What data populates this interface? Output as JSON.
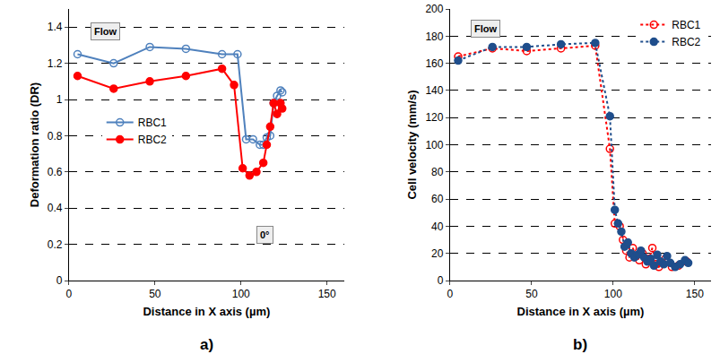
{
  "chart_data": [
    {
      "type": "line",
      "panel_label": "a)",
      "x_label": "Distance in X axis (µm)",
      "y_label": "Deformation ratio (DR)",
      "xlim": [
        0,
        160
      ],
      "xticks": [
        0,
        50,
        100,
        150
      ],
      "ylim": [
        0,
        1.5
      ],
      "yticks": [
        0,
        0.2,
        0.4,
        0.6,
        0.8,
        1,
        1.2,
        1.4
      ],
      "grid": true,
      "legend": "middle left",
      "annotations": [
        "Flow",
        "0°"
      ],
      "series": [
        {
          "name": "RBC1",
          "color": "#4f81bd",
          "marker": "circle-open",
          "line_style": "solid",
          "x": [
            5,
            26,
            47,
            68,
            89,
            98,
            103,
            107,
            111,
            113,
            115,
            117,
            119,
            121,
            123,
            124
          ],
          "values": [
            1.25,
            1.2,
            1.29,
            1.28,
            1.25,
            1.25,
            0.78,
            0.78,
            0.75,
            0.75,
            0.79,
            0.8,
            0.98,
            1.02,
            1.05,
            1.04
          ]
        },
        {
          "name": "RBC2",
          "color": "#ff0000",
          "marker": "circle",
          "line_style": "solid",
          "x": [
            5,
            26,
            47,
            68,
            89,
            96,
            101,
            105,
            109,
            113,
            115,
            117,
            119,
            121,
            123,
            124
          ],
          "values": [
            1.13,
            1.06,
            1.1,
            1.13,
            1.17,
            1.08,
            0.62,
            0.58,
            0.6,
            0.65,
            0.75,
            0.85,
            0.98,
            0.92,
            0.98,
            0.95
          ]
        }
      ]
    },
    {
      "type": "line",
      "panel_label": "b)",
      "x_label": "Distance in X axis (µm)",
      "y_label": "Cell velocity (mm/s)",
      "xlim": [
        0,
        160
      ],
      "xticks": [
        0,
        50,
        100,
        150
      ],
      "ylim": [
        0,
        200
      ],
      "yticks": [
        0,
        20,
        40,
        60,
        80,
        100,
        120,
        140,
        160,
        180,
        200
      ],
      "grid": true,
      "legend": "top right",
      "annotations": [
        "Flow"
      ],
      "series": [
        {
          "name": "RBC1",
          "color": "#ff0000",
          "marker": "circle-open",
          "line_style": "dot",
          "x": [
            5,
            26,
            47,
            68,
            89,
            98,
            101,
            104,
            106,
            108,
            110,
            112,
            114,
            116,
            118,
            120,
            122,
            124,
            126,
            128,
            130,
            132,
            136,
            140,
            145
          ],
          "values": [
            165,
            171,
            169,
            171,
            173,
            97,
            42,
            40,
            30,
            22,
            17,
            24,
            18,
            15,
            20,
            12,
            16,
            24,
            12,
            10,
            13,
            16,
            10,
            11,
            14
          ]
        },
        {
          "name": "RBC2",
          "color": "#1f4e8c",
          "marker": "circle",
          "line_style": "dot",
          "x": [
            5,
            26,
            47,
            68,
            89,
            98,
            101,
            103,
            105,
            107,
            109,
            111,
            113,
            115,
            117,
            119,
            121,
            123,
            125,
            127,
            129,
            131,
            133,
            135,
            138,
            141,
            144,
            146
          ],
          "values": [
            162,
            172,
            172,
            174,
            175,
            121,
            52,
            42,
            36,
            25,
            28,
            20,
            17,
            19,
            22,
            17,
            14,
            16,
            11,
            19,
            14,
            12,
            18,
            13,
            10,
            12,
            15,
            13
          ]
        }
      ]
    }
  ]
}
